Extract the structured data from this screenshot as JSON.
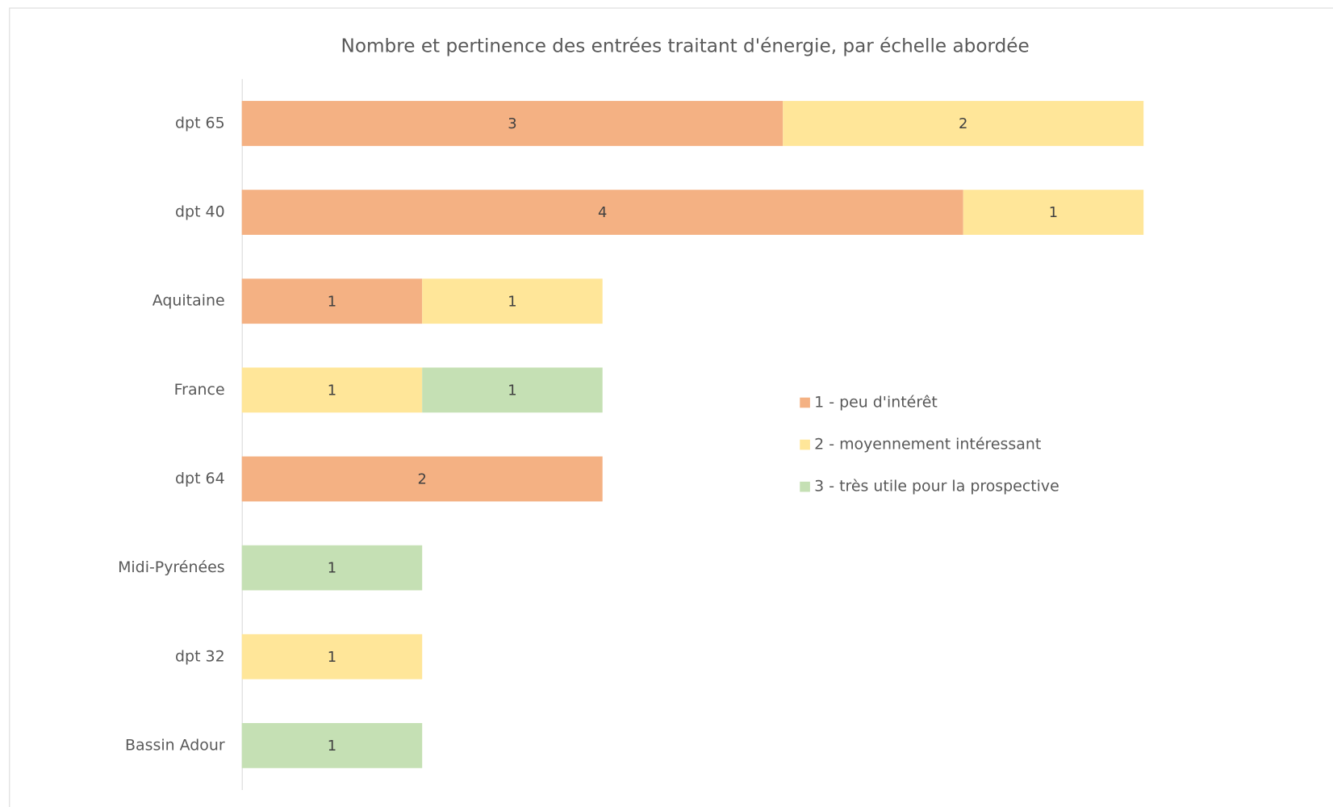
{
  "chart_data": {
    "type": "stacked-bar-horizontal",
    "title": "Nombre et pertinence des entrées traitant d'énergie, par échelle abordée",
    "categories": [
      "dpt 65",
      "dpt 40",
      "Aquitaine",
      "France",
      "dpt 64",
      "Midi-Pyrénées",
      "dpt 32",
      "Bassin Adour"
    ],
    "series": [
      {
        "name": "1 - peu d'intérêt",
        "color": "#F4B183",
        "values": [
          3,
          4,
          1,
          null,
          2,
          null,
          null,
          null
        ]
      },
      {
        "name": "2 - moyennement intéressant",
        "color": "#FFE699",
        "values": [
          2,
          1,
          1,
          1,
          null,
          null,
          1,
          null
        ]
      },
      {
        "name": "3 - très utile pour la prospective",
        "color": "#C5E0B4",
        "values": [
          null,
          null,
          null,
          1,
          null,
          1,
          null,
          1
        ]
      }
    ],
    "xlim": [
      0,
      6
    ],
    "legend": "right"
  }
}
